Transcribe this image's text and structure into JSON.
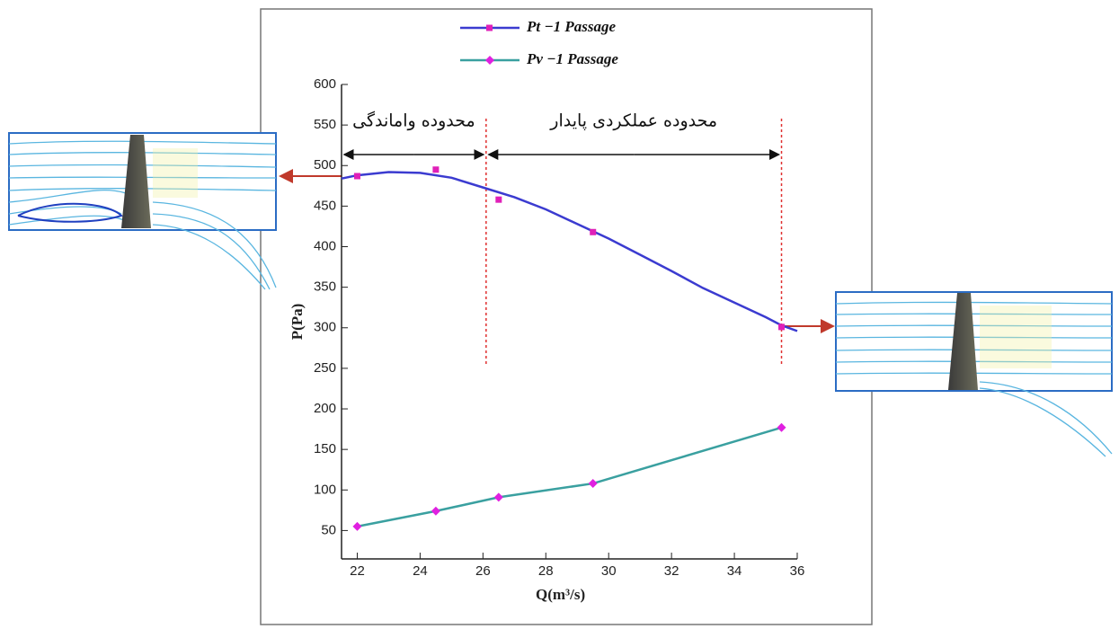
{
  "chart_data": {
    "type": "line",
    "xlabel": "Q(m³/s)",
    "ylabel": "P(Pa)",
    "xlim": [
      21.5,
      36
    ],
    "xticks": [
      22,
      24,
      26,
      28,
      30,
      32,
      34,
      36
    ],
    "ylim": [
      15,
      600
    ],
    "yticks": [
      50,
      100,
      150,
      200,
      250,
      300,
      350,
      400,
      450,
      500,
      550,
      600
    ],
    "series": [
      {
        "name": "Pt −1 Passage",
        "color": "#3b3bd0",
        "marker_color": "#e020b8",
        "marker": "square",
        "x": [
          22,
          24.5,
          26.5,
          29.5,
          35.5
        ],
        "values": [
          487,
          495,
          458,
          418,
          301
        ],
        "curve": {
          "x": [
            21.5,
            22,
            23,
            24,
            25,
            26,
            27,
            28,
            29,
            30,
            31,
            32,
            33,
            34,
            35,
            35.5,
            36
          ],
          "values": [
            484,
            488,
            492,
            491,
            485,
            473,
            461,
            446,
            428,
            410,
            390,
            370,
            349,
            331,
            313,
            303,
            296
          ]
        }
      },
      {
        "name": "Pv −1 Passage",
        "color": "#3aa0a0",
        "marker_color": "#e020e0",
        "marker": "diamond",
        "x": [
          22,
          24.5,
          26.5,
          29.5,
          35.5
        ],
        "values": [
          55,
          74,
          91,
          108,
          177
        ]
      }
    ],
    "dashed_lines_x": [
      26.1,
      35.5
    ],
    "annotations": [
      {
        "text": "محدوده واماندگی",
        "x": [
          21.5,
          26.1
        ]
      },
      {
        "text": "محدوده عملکردی پایدار",
        "x": [
          26.1,
          35.5
        ]
      }
    ]
  }
}
